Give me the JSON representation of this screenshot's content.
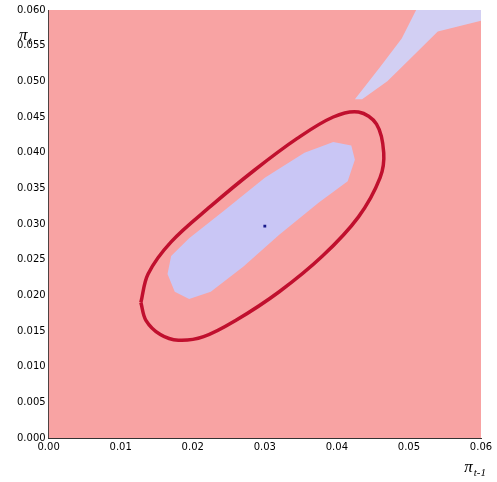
{
  "chart_data": {
    "type": "scatter",
    "x_label": {
      "text": "π",
      "sub": "t-1"
    },
    "y_label": {
      "text": "π",
      "sub": "t"
    },
    "xlim": [
      0,
      0.06
    ],
    "ylim": [
      0,
      0.06
    ],
    "xticks": [
      {
        "value": 0,
        "label": "0.00"
      },
      {
        "value": 0.01,
        "label": "0.01"
      },
      {
        "value": 0.02,
        "label": "0.02"
      },
      {
        "value": 0.03,
        "label": "0.03"
      },
      {
        "value": 0.04,
        "label": "0.04"
      },
      {
        "value": 0.05,
        "label": "0.05"
      },
      {
        "value": 0.06,
        "label": "0.06"
      }
    ],
    "yticks": [
      {
        "value": 0,
        "label": "0.000"
      },
      {
        "value": 0.005,
        "label": "0.005"
      },
      {
        "value": 0.01,
        "label": "0.010"
      },
      {
        "value": 0.015,
        "label": "0.015"
      },
      {
        "value": 0.02,
        "label": "0.020"
      },
      {
        "value": 0.025,
        "label": "0.025"
      },
      {
        "value": 0.03,
        "label": "0.030"
      },
      {
        "value": 0.035,
        "label": "0.035"
      },
      {
        "value": 0.04,
        "label": "0.040"
      },
      {
        "value": 0.045,
        "label": "0.045"
      },
      {
        "value": 0.05,
        "label": "0.050"
      },
      {
        "value": 0.055,
        "label": "0.055"
      },
      {
        "value": 0.06,
        "label": "0.060"
      }
    ],
    "grid": false,
    "series": [
      {
        "type": "area",
        "color": "#f8a3a3",
        "x": [
          0,
          0.06,
          0.06,
          0,
          0
        ],
        "values": [
          0,
          0,
          0.06,
          0.06,
          0
        ]
      },
      {
        "type": "area",
        "color": "#d2cff3",
        "x": [
          0.0425,
          0.046,
          0.049,
          0.051,
          0.06,
          0.06,
          0.054,
          0.05,
          0.047,
          0.0435,
          0.0425
        ],
        "values": [
          0.0475,
          0.052,
          0.056,
          0.06,
          0.06,
          0.0585,
          0.057,
          0.053,
          0.05,
          0.0475,
          0.0475
        ]
      },
      {
        "type": "area",
        "color": "#c9c6f5",
        "x": [
          0.0165,
          0.0175,
          0.0195,
          0.0225,
          0.027,
          0.032,
          0.0375,
          0.0415,
          0.0425,
          0.042,
          0.0395,
          0.0355,
          0.03,
          0.0245,
          0.0195,
          0.017,
          0.0165
        ],
        "values": [
          0.023,
          0.0205,
          0.0195,
          0.0205,
          0.024,
          0.0285,
          0.033,
          0.036,
          0.039,
          0.041,
          0.0415,
          0.04,
          0.0365,
          0.032,
          0.028,
          0.0255,
          0.023
        ]
      },
      {
        "type": "line",
        "color": "#c0102e",
        "x": [
          0.0128,
          0.0135,
          0.0155,
          0.018,
          0.0215,
          0.026,
          0.032,
          0.038,
          0.043,
          0.046,
          0.0465,
          0.0455,
          0.043,
          0.0395,
          0.0345,
          0.0285,
          0.0225,
          0.017,
          0.0138,
          0.0128
        ],
        "values": [
          0.019,
          0.0165,
          0.0145,
          0.0137,
          0.0142,
          0.0165,
          0.0205,
          0.0255,
          0.031,
          0.0365,
          0.04,
          0.044,
          0.0457,
          0.045,
          0.042,
          0.0375,
          0.0325,
          0.0275,
          0.023,
          0.019
        ]
      },
      {
        "type": "scatter",
        "color": "#1a1a8c",
        "marker": "square",
        "x": [
          0.03
        ],
        "values": [
          0.0297
        ]
      }
    ]
  }
}
